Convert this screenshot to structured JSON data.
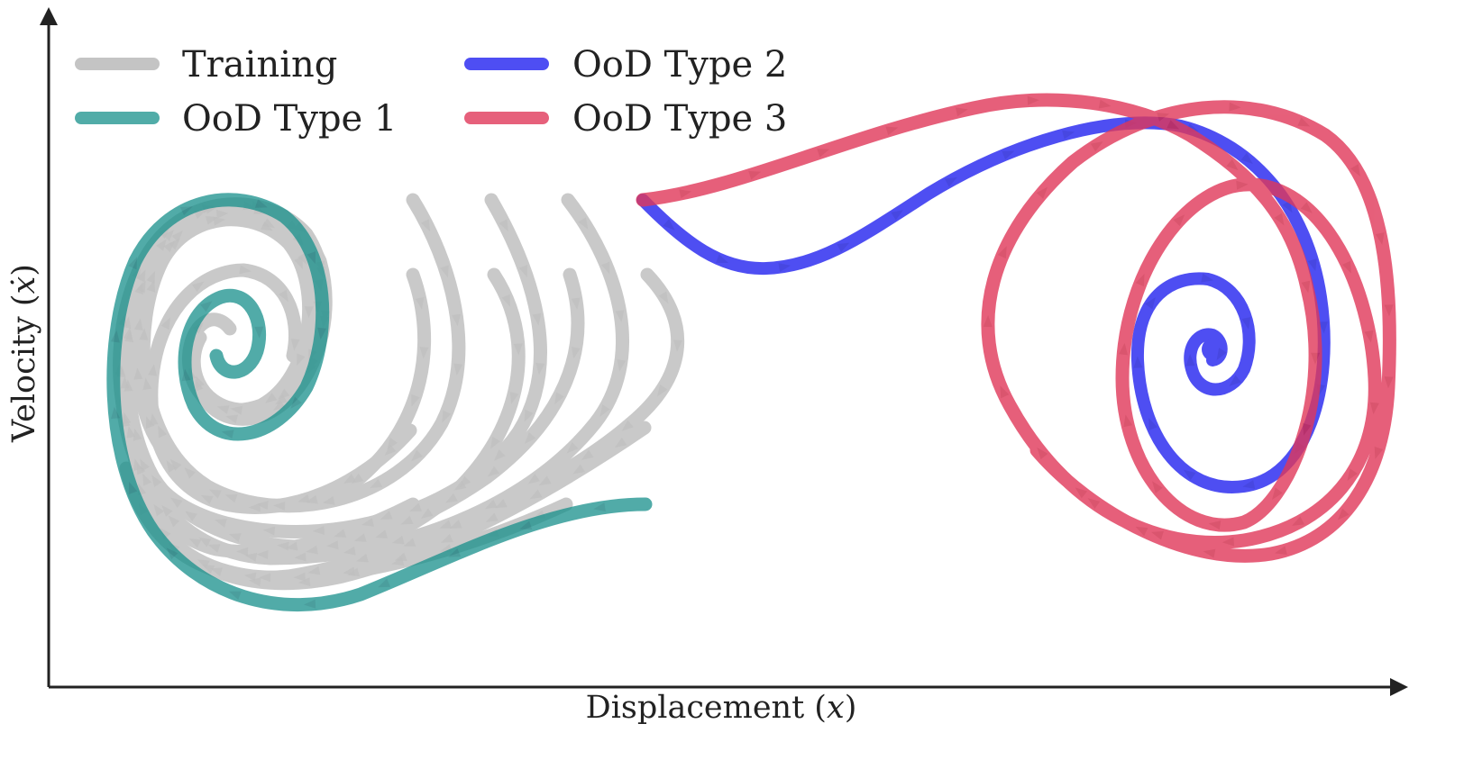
{
  "figure": {
    "xlabel": {
      "text": "Displacement (",
      "symbol": "x",
      "close": ")"
    },
    "ylabel": {
      "text": "Velocity (",
      "symbol": "ẋ",
      "close": ")"
    }
  },
  "legend": {
    "items": [
      {
        "label": "Training",
        "color": "#c4c4c4"
      },
      {
        "label": "OoD Type 1",
        "color": "#17908b"
      },
      {
        "label": "OoD Type 2",
        "color": "#2222f0"
      },
      {
        "label": "OoD Type 3",
        "color": "#e0385a"
      }
    ]
  },
  "icons": {
    "x_axis_arrow": "arrow-right-icon",
    "y_axis_arrow": "arrow-up-icon",
    "direction_markers": "triangle-arrow-icon"
  }
}
